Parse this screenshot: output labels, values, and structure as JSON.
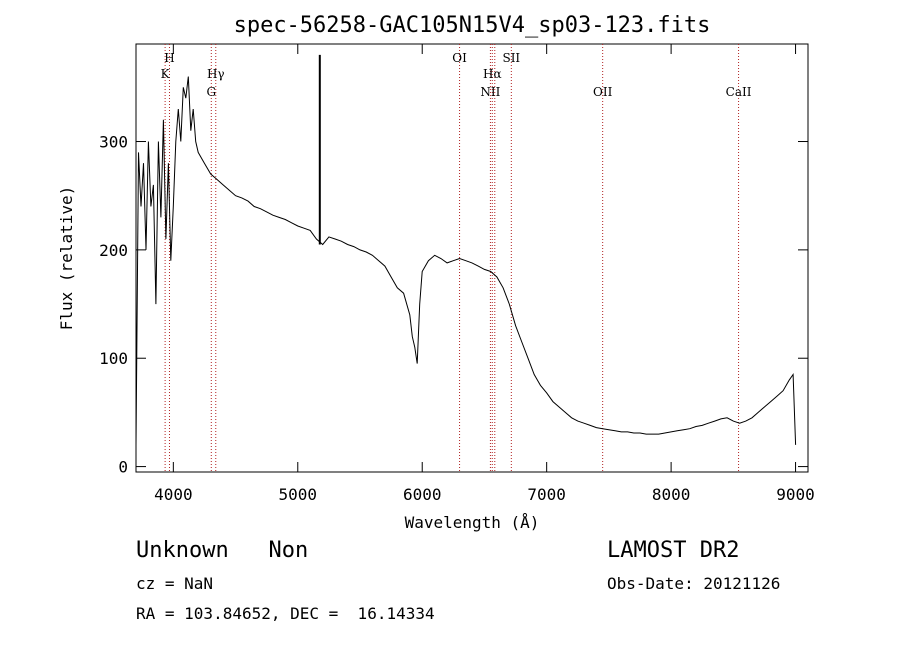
{
  "chart_data": {
    "type": "line",
    "title": "spec-56258-GAC105N15V4_sp03-123.fits",
    "xlabel": "Wavelength (Å)",
    "ylabel": "Flux (relative)",
    "xlim": [
      3700,
      9100
    ],
    "ylim": [
      -5,
      390
    ],
    "xticks": [
      4000,
      5000,
      6000,
      7000,
      8000,
      9000
    ],
    "yticks": [
      0,
      100,
      200,
      300
    ],
    "grid": false,
    "series": [
      {
        "x": [
          3700,
          3720,
          3740,
          3760,
          3780,
          3800,
          3820,
          3840,
          3860,
          3880,
          3900,
          3920,
          3940,
          3960,
          3980,
          4000,
          4020,
          4040,
          4060,
          4080,
          4100,
          4120,
          4140,
          4160,
          4180,
          4200,
          4250,
          4300,
          4350,
          4400,
          4450,
          4500,
          4550,
          4600,
          4650,
          4700,
          4750,
          4800,
          4850,
          4900,
          4950,
          5000,
          5050,
          5100,
          5150,
          5200,
          5250,
          5300,
          5350,
          5400,
          5450,
          5500,
          5550,
          5600,
          5650,
          5700,
          5750,
          5800,
          5850,
          5900,
          5920,
          5940,
          5960,
          5980,
          6000,
          6050,
          6100,
          6150,
          6200,
          6250,
          6300,
          6350,
          6400,
          6450,
          6500,
          6550,
          6600,
          6650,
          6700,
          6750,
          6800,
          6850,
          6900,
          6950,
          7000,
          7050,
          7100,
          7150,
          7200,
          7250,
          7300,
          7350,
          7400,
          7450,
          7500,
          7550,
          7600,
          7650,
          7700,
          7750,
          7800,
          7850,
          7900,
          7950,
          8000,
          8050,
          8100,
          8150,
          8200,
          8250,
          8300,
          8350,
          8400,
          8450,
          8500,
          8550,
          8600,
          8650,
          8700,
          8750,
          8800,
          8850,
          8900,
          8950,
          8980,
          9000
        ],
        "y": [
          20,
          290,
          240,
          280,
          200,
          300,
          240,
          260,
          150,
          300,
          230,
          320,
          210,
          280,
          190,
          240,
          300,
          330,
          300,
          350,
          340,
          360,
          310,
          330,
          300,
          290,
          280,
          270,
          265,
          260,
          255,
          250,
          248,
          245,
          240,
          238,
          235,
          232,
          230,
          228,
          225,
          222,
          220,
          218,
          210,
          205,
          212,
          210,
          208,
          205,
          203,
          200,
          198,
          195,
          190,
          185,
          175,
          165,
          160,
          140,
          120,
          110,
          95,
          150,
          180,
          190,
          195,
          192,
          188,
          190,
          192,
          190,
          188,
          185,
          182,
          180,
          175,
          165,
          150,
          130,
          115,
          100,
          85,
          75,
          68,
          60,
          55,
          50,
          45,
          42,
          40,
          38,
          36,
          35,
          34,
          33,
          32,
          32,
          31,
          31,
          30,
          30,
          30,
          31,
          32,
          33,
          34,
          35,
          37,
          38,
          40,
          42,
          44,
          45,
          42,
          40,
          42,
          45,
          50,
          55,
          60,
          65,
          70,
          80,
          85,
          20
        ]
      }
    ],
    "annotations": [
      {
        "label": "K",
        "x": 3934
      },
      {
        "label": "H",
        "x": 3969
      },
      {
        "label": "G",
        "x": 4305
      },
      {
        "label": "Hγ",
        "x": 4341
      },
      {
        "label": "OI",
        "x": 6300
      },
      {
        "label": "NII",
        "x": 6548
      },
      {
        "label": "Hα",
        "x": 6563
      },
      {
        "label": "NII",
        "x": 6583
      },
      {
        "label": "SII",
        "x": 6716
      },
      {
        "label": "OII",
        "x": 7450
      },
      {
        "label": "CaII",
        "x": 8542
      }
    ],
    "spike_x": 5177
  },
  "info": {
    "left_big": "Unknown   Non",
    "right_big": "LAMOST DR2",
    "cz": "cz = NaN",
    "radec": "RA = 103.84652, DEC =  16.14334",
    "obsdate": "Obs-Date: 20121126"
  }
}
